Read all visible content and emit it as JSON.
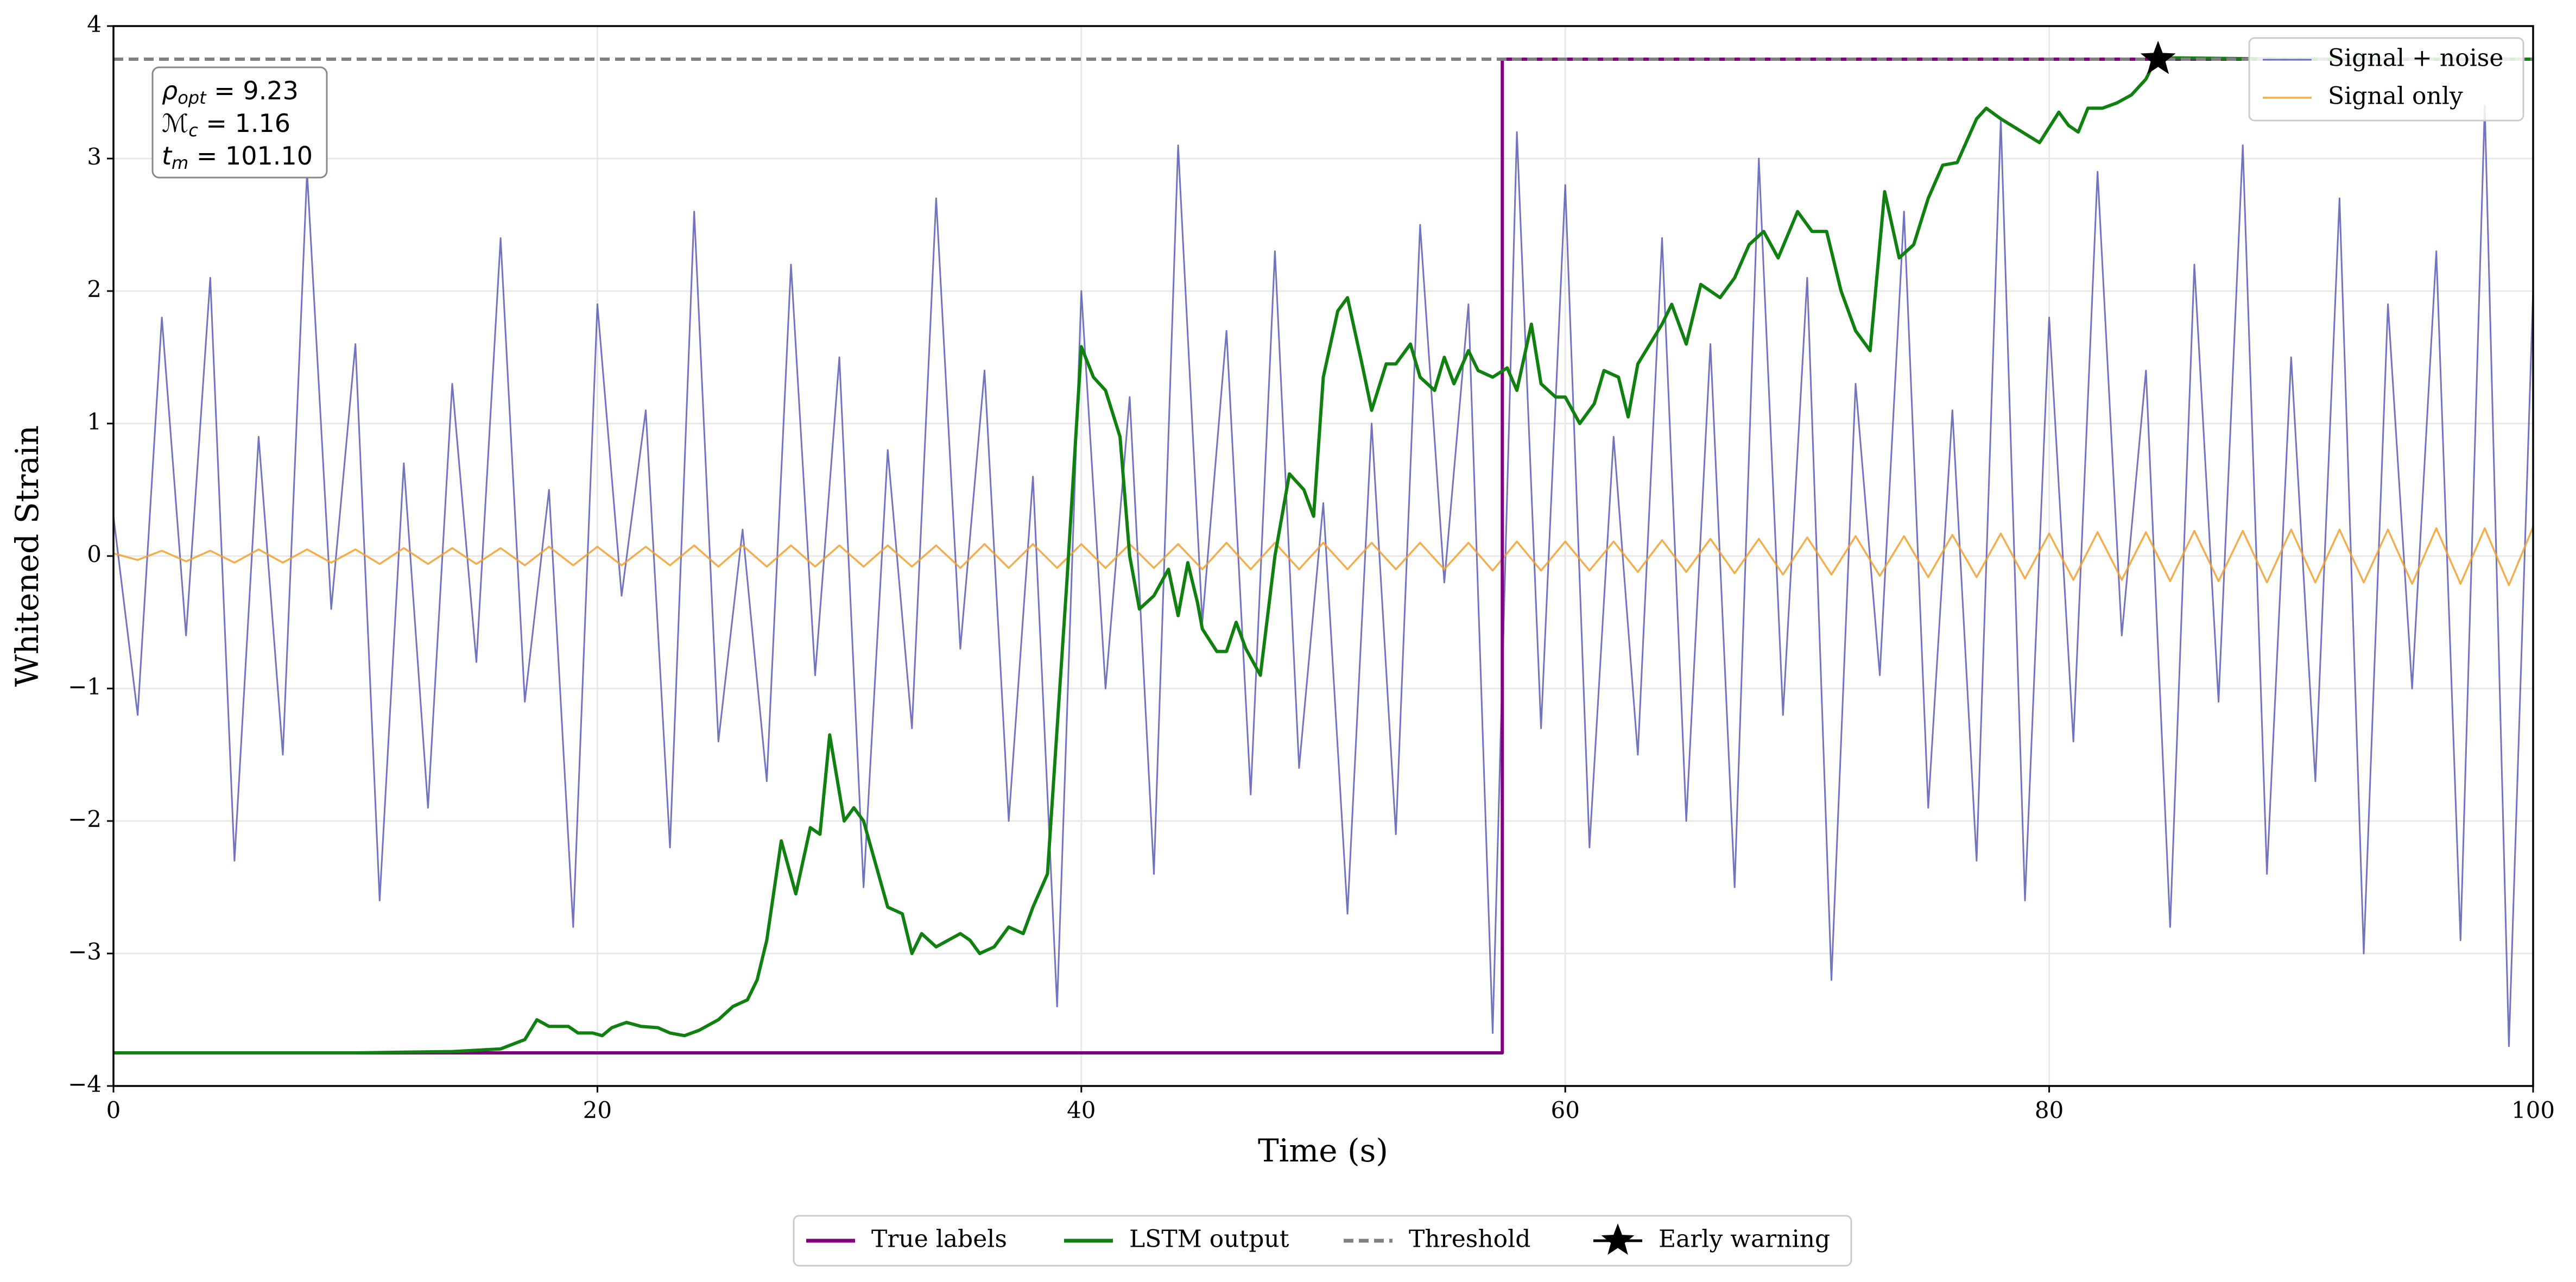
{
  "chart_data": {
    "type": "line",
    "xlabel": "Time (s)",
    "ylabel": "Whitened Strain",
    "xlim": [
      0,
      100
    ],
    "ylim": [
      -4,
      4
    ],
    "xticks": [
      0,
      20,
      40,
      60,
      80,
      100
    ],
    "yticks": [
      {
        "value": -4,
        "label": "−4"
      },
      {
        "value": -3,
        "label": "−3"
      },
      {
        "value": -2,
        "label": "−2"
      },
      {
        "value": -1,
        "label": "−1"
      },
      0,
      1,
      2,
      3,
      4
    ],
    "grid": true,
    "annotation": [
      {
        "symbol": "ρ",
        "sub": "opt",
        "text": " = 9.23"
      },
      {
        "symbol": "ℳ",
        "sub": "c",
        "text": " = 1.16"
      },
      {
        "symbol": "t",
        "sub": "m",
        "text": " = 101.10"
      }
    ],
    "series": [
      {
        "name": "Signal + noise",
        "color": "#5050b0",
        "style": "solid",
        "legend": "upper right",
        "x": [
          0,
          1,
          2,
          3,
          4,
          5,
          6,
          7,
          8,
          9,
          10,
          11,
          12,
          13,
          14,
          15,
          16,
          17,
          18,
          19,
          20,
          21,
          22,
          23,
          24,
          25,
          26,
          27,
          28,
          29,
          30,
          31,
          32,
          33,
          34,
          35,
          36,
          37,
          38,
          39,
          40,
          41,
          42,
          43,
          44,
          45,
          46,
          47,
          48,
          49,
          50,
          51,
          52,
          53,
          54,
          55,
          56,
          57,
          58,
          59,
          60,
          61,
          62,
          63,
          64,
          65,
          66,
          67,
          68,
          69,
          70,
          71,
          72,
          73,
          74,
          75,
          76,
          77,
          78,
          79,
          80,
          81,
          82,
          83,
          84,
          85,
          86,
          87,
          88,
          89,
          90,
          91,
          92,
          93,
          94,
          95,
          96,
          97,
          98,
          99,
          100
        ],
        "values": [
          0.3,
          -1.2,
          1.8,
          -0.6,
          2.1,
          -2.3,
          0.9,
          -1.5,
          2.9,
          -0.4,
          1.6,
          -2.6,
          0.7,
          -1.9,
          1.3,
          -0.8,
          2.4,
          -1.1,
          0.5,
          -2.8,
          1.9,
          -0.3,
          1.1,
          -2.2,
          2.6,
          -1.4,
          0.2,
          -1.7,
          2.2,
          -0.9,
          1.5,
          -2.5,
          0.8,
          -1.3,
          2.7,
          -0.7,
          1.4,
          -2.0,
          0.6,
          -3.4,
          2.0,
          -1.0,
          1.2,
          -2.4,
          3.1,
          -0.5,
          1.7,
          -1.8,
          2.3,
          -1.6,
          0.4,
          -2.7,
          1.0,
          -2.1,
          2.5,
          -0.2,
          1.9,
          -3.6,
          3.2,
          -1.3,
          2.8,
          -2.2,
          0.9,
          -1.5,
          2.4,
          -2.0,
          1.6,
          -2.5,
          3.0,
          -1.2,
          2.1,
          -3.2,
          1.3,
          -0.9,
          2.6,
          -1.9,
          1.1,
          -2.3,
          3.3,
          -2.6,
          1.8,
          -1.4,
          2.9,
          -0.6,
          1.4,
          -2.8,
          2.2,
          -1.1,
          3.1,
          -2.4,
          1.5,
          -1.7,
          2.7,
          -3.0,
          1.9,
          -1.0,
          2.3,
          -2.9,
          3.4,
          -3.7,
          2.0
        ]
      },
      {
        "name": "Signal only",
        "color": "#f0a030",
        "style": "solid",
        "legend": "upper right",
        "x": [
          0,
          1,
          2,
          3,
          4,
          5,
          6,
          7,
          8,
          9,
          10,
          11,
          12,
          13,
          14,
          15,
          16,
          17,
          18,
          19,
          20,
          21,
          22,
          23,
          24,
          25,
          26,
          27,
          28,
          29,
          30,
          31,
          32,
          33,
          34,
          35,
          36,
          37,
          38,
          39,
          40,
          41,
          42,
          43,
          44,
          45,
          46,
          47,
          48,
          49,
          50,
          51,
          52,
          53,
          54,
          55,
          56,
          57,
          58,
          59,
          60,
          61,
          62,
          63,
          64,
          65,
          66,
          67,
          68,
          69,
          70,
          71,
          72,
          73,
          74,
          75,
          76,
          77,
          78,
          79,
          80,
          81,
          82,
          83,
          84,
          85,
          86,
          87,
          88,
          89,
          90,
          91,
          92,
          93,
          94,
          95,
          96,
          97,
          98,
          99,
          100
        ],
        "values": [
          0.02,
          -0.03,
          0.04,
          -0.04,
          0.04,
          -0.05,
          0.05,
          -0.05,
          0.05,
          -0.05,
          0.05,
          -0.06,
          0.06,
          -0.06,
          0.06,
          -0.06,
          0.06,
          -0.07,
          0.07,
          -0.07,
          0.07,
          -0.07,
          0.07,
          -0.07,
          0.08,
          -0.08,
          0.08,
          -0.08,
          0.08,
          -0.08,
          0.08,
          -0.08,
          0.08,
          -0.08,
          0.08,
          -0.09,
          0.09,
          -0.09,
          0.09,
          -0.09,
          0.09,
          -0.09,
          0.09,
          -0.09,
          0.09,
          -0.1,
          0.1,
          -0.1,
          0.1,
          -0.1,
          0.1,
          -0.1,
          0.1,
          -0.1,
          0.1,
          -0.1,
          0.1,
          -0.11,
          0.11,
          -0.11,
          0.11,
          -0.11,
          0.11,
          -0.12,
          0.12,
          -0.12,
          0.13,
          -0.13,
          0.13,
          -0.14,
          0.14,
          -0.14,
          0.15,
          -0.15,
          0.15,
          -0.16,
          0.16,
          -0.16,
          0.17,
          -0.17,
          0.17,
          -0.18,
          0.18,
          -0.18,
          0.18,
          -0.19,
          0.19,
          -0.19,
          0.19,
          -0.2,
          0.2,
          -0.2,
          0.2,
          -0.2,
          0.2,
          -0.21,
          0.21,
          -0.21,
          0.21,
          -0.22,
          0.22
        ]
      },
      {
        "name": "True labels",
        "color": "#800080",
        "style": "solid",
        "legend": "below",
        "x": [
          0,
          57.4,
          57.4,
          100
        ],
        "values": [
          -3.75,
          -3.75,
          3.75,
          3.75
        ]
      },
      {
        "name": "LSTM output",
        "color": "#108010",
        "style": "solid",
        "legend": "below",
        "x": [
          0,
          10,
          14,
          16,
          17,
          17.5,
          18,
          18.8,
          19.2,
          19.8,
          20.2,
          20.6,
          21.2,
          21.8,
          22.5,
          23,
          23.6,
          24.2,
          25,
          25.6,
          26.2,
          26.6,
          27,
          27.4,
          27.6,
          28.2,
          28.8,
          29.2,
          29.6,
          30.2,
          30.6,
          31,
          32,
          32.6,
          33,
          33.4,
          34,
          35,
          35.4,
          35.8,
          36.4,
          37,
          37.6,
          38,
          38.6,
          39,
          39.4,
          40,
          40.5,
          41,
          41.6,
          42,
          42.4,
          43,
          43.6,
          44,
          44.4,
          44.8,
          45,
          45.6,
          46,
          46.4,
          46.8,
          47.4,
          48,
          48.6,
          49.2,
          49.6,
          50,
          50.6,
          51,
          51.6,
          52,
          52.6,
          53,
          53.6,
          54,
          54.6,
          55,
          55.4,
          56,
          56.4,
          57,
          57.6,
          58,
          58.6,
          59,
          59.6,
          60,
          60.6,
          61.2,
          61.6,
          62.2,
          62.6,
          63,
          64,
          64.4,
          65,
          65.6,
          66.4,
          67,
          67.6,
          68.2,
          68.8,
          69.6,
          70.2,
          70.8,
          71.4,
          72,
          72.6,
          73.2,
          73.8,
          74.4,
          75,
          75.6,
          76.2,
          77,
          77.4,
          78,
          79.6,
          80.4,
          80.8,
          81.2,
          81.6,
          82.2,
          82.8,
          83.4,
          84,
          84.4,
          85.2,
          90,
          100
        ],
        "values": [
          -3.75,
          -3.75,
          -3.74,
          -3.72,
          -3.65,
          -3.5,
          -3.55,
          -3.55,
          -3.6,
          -3.6,
          -3.62,
          -3.56,
          -3.52,
          -3.55,
          -3.56,
          -3.6,
          -3.62,
          -3.58,
          -3.5,
          -3.4,
          -3.35,
          -3.2,
          -2.9,
          -2.4,
          -2.15,
          -2.55,
          -2.05,
          -2.1,
          -1.35,
          -2.0,
          -1.9,
          -2.0,
          -2.65,
          -2.7,
          -3.0,
          -2.85,
          -2.95,
          -2.85,
          -2.9,
          -3.0,
          -2.95,
          -2.8,
          -2.85,
          -2.65,
          -2.4,
          -1.3,
          -0.2,
          1.58,
          1.35,
          1.25,
          0.9,
          0.0,
          -0.4,
          -0.3,
          -0.1,
          -0.45,
          -0.05,
          -0.35,
          -0.55,
          -0.72,
          -0.72,
          -0.5,
          -0.7,
          -0.9,
          0.0,
          0.62,
          0.5,
          0.3,
          1.35,
          1.85,
          1.95,
          1.45,
          1.1,
          1.45,
          1.45,
          1.6,
          1.35,
          1.25,
          1.5,
          1.3,
          1.55,
          1.4,
          1.35,
          1.42,
          1.25,
          1.75,
          1.3,
          1.2,
          1.2,
          1.0,
          1.15,
          1.4,
          1.35,
          1.05,
          1.45,
          1.75,
          1.9,
          1.6,
          2.05,
          1.95,
          2.1,
          2.35,
          2.45,
          2.25,
          2.6,
          2.45,
          2.45,
          2.0,
          1.7,
          1.55,
          2.75,
          2.25,
          2.35,
          2.7,
          2.95,
          2.97,
          3.3,
          3.38,
          3.3,
          3.12,
          3.35,
          3.25,
          3.2,
          3.38,
          3.38,
          3.42,
          3.48,
          3.6,
          3.75,
          3.76,
          3.75,
          3.75
        ]
      },
      {
        "name": "Threshold",
        "color": "#808080",
        "style": "dashed",
        "legend": "below",
        "x": [
          0,
          100
        ],
        "values": [
          3.75,
          3.75
        ]
      },
      {
        "name": "Early warning",
        "color": "#000000",
        "style": "none",
        "marker": "star",
        "legend": "below",
        "x": [
          84.5
        ],
        "values": [
          3.75
        ]
      }
    ]
  }
}
